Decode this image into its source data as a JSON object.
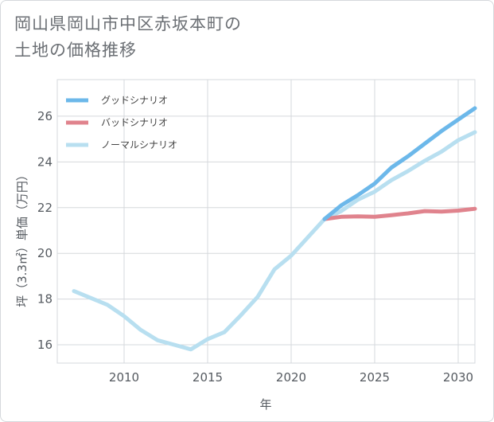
{
  "title_lines": [
    "岡山県岡山市中区赤坂本町の",
    "土地の価格推移"
  ],
  "chart_data": {
    "type": "line",
    "title": "岡山県岡山市中区赤坂本町の土地の価格推移",
    "xlabel": "年",
    "ylabel": "坪（3.3㎡）単価（万円）",
    "xlim": [
      2006,
      2031
    ],
    "ylim": [
      15.2,
      27.6
    ],
    "xticks": [
      2010,
      2015,
      2020,
      2025,
      2030
    ],
    "yticks": [
      16,
      18,
      20,
      22,
      24,
      26
    ],
    "grid": true,
    "legend_position": "top-left",
    "series": [
      {
        "name": "グッドシナリオ",
        "color": "#6cb8ea",
        "x": [
          2022,
          2023,
          2024,
          2025,
          2026,
          2027,
          2028,
          2029,
          2030,
          2031
        ],
        "y": [
          21.5,
          22.1,
          22.55,
          23.05,
          23.75,
          24.25,
          24.8,
          25.35,
          25.85,
          26.35
        ]
      },
      {
        "name": "バッドシナリオ",
        "color": "#e0838d",
        "x": [
          2022,
          2023,
          2024,
          2025,
          2026,
          2027,
          2028,
          2029,
          2030,
          2031
        ],
        "y": [
          21.5,
          21.6,
          21.62,
          21.6,
          21.67,
          21.75,
          21.85,
          21.83,
          21.87,
          21.95
        ]
      },
      {
        "name": "ノーマルシナリオ",
        "color": "#b8dff0",
        "x": [
          2007,
          2008,
          2009,
          2010,
          2011,
          2012,
          2013,
          2014,
          2015,
          2016,
          2017,
          2018,
          2019,
          2020,
          2021,
          2022,
          2023,
          2024,
          2025,
          2026,
          2027,
          2028,
          2029,
          2030,
          2031
        ],
        "y": [
          18.35,
          18.05,
          17.75,
          17.25,
          16.65,
          16.2,
          16.0,
          15.8,
          16.25,
          16.55,
          17.3,
          18.1,
          19.3,
          19.9,
          20.7,
          21.5,
          21.85,
          22.35,
          22.7,
          23.2,
          23.6,
          24.05,
          24.45,
          24.95,
          25.3
        ]
      }
    ]
  }
}
